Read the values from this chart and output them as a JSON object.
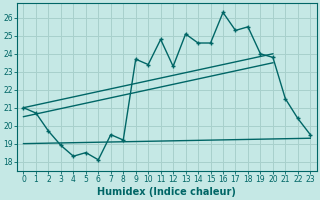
{
  "xlabel": "Humidex (Indice chaleur)",
  "xlim": [
    -0.5,
    23.5
  ],
  "ylim": [
    17.5,
    26.8
  ],
  "xticks": [
    0,
    1,
    2,
    3,
    4,
    5,
    6,
    7,
    8,
    9,
    10,
    11,
    12,
    13,
    14,
    15,
    16,
    17,
    18,
    19,
    20,
    21,
    22,
    23
  ],
  "yticks": [
    18,
    19,
    20,
    21,
    22,
    23,
    24,
    25,
    26
  ],
  "bg_color": "#c5e8e5",
  "grid_color": "#a8d0cc",
  "line_color": "#006666",
  "jagged_x": [
    0,
    1,
    2,
    3,
    4,
    5,
    6,
    7,
    8,
    9,
    10,
    11,
    12,
    13,
    14,
    15,
    16,
    17,
    18,
    19,
    20,
    21,
    22,
    23
  ],
  "jagged_y": [
    21.0,
    20.7,
    19.7,
    18.9,
    18.3,
    18.5,
    18.1,
    19.5,
    19.2,
    23.7,
    23.4,
    24.8,
    23.3,
    25.1,
    24.6,
    24.6,
    26.3,
    25.3,
    25.5,
    24.0,
    23.8,
    21.5,
    20.4,
    19.5
  ],
  "upper_line_x": [
    0,
    20
  ],
  "upper_line_y": [
    21.0,
    24.0
  ],
  "lower_line_x": [
    0,
    20
  ],
  "lower_line_y": [
    20.5,
    23.5
  ],
  "flat_line_x": [
    0,
    23
  ],
  "flat_line_y": [
    19.0,
    19.3
  ],
  "tick_fontsize": 5.5,
  "xlabel_fontsize": 7
}
